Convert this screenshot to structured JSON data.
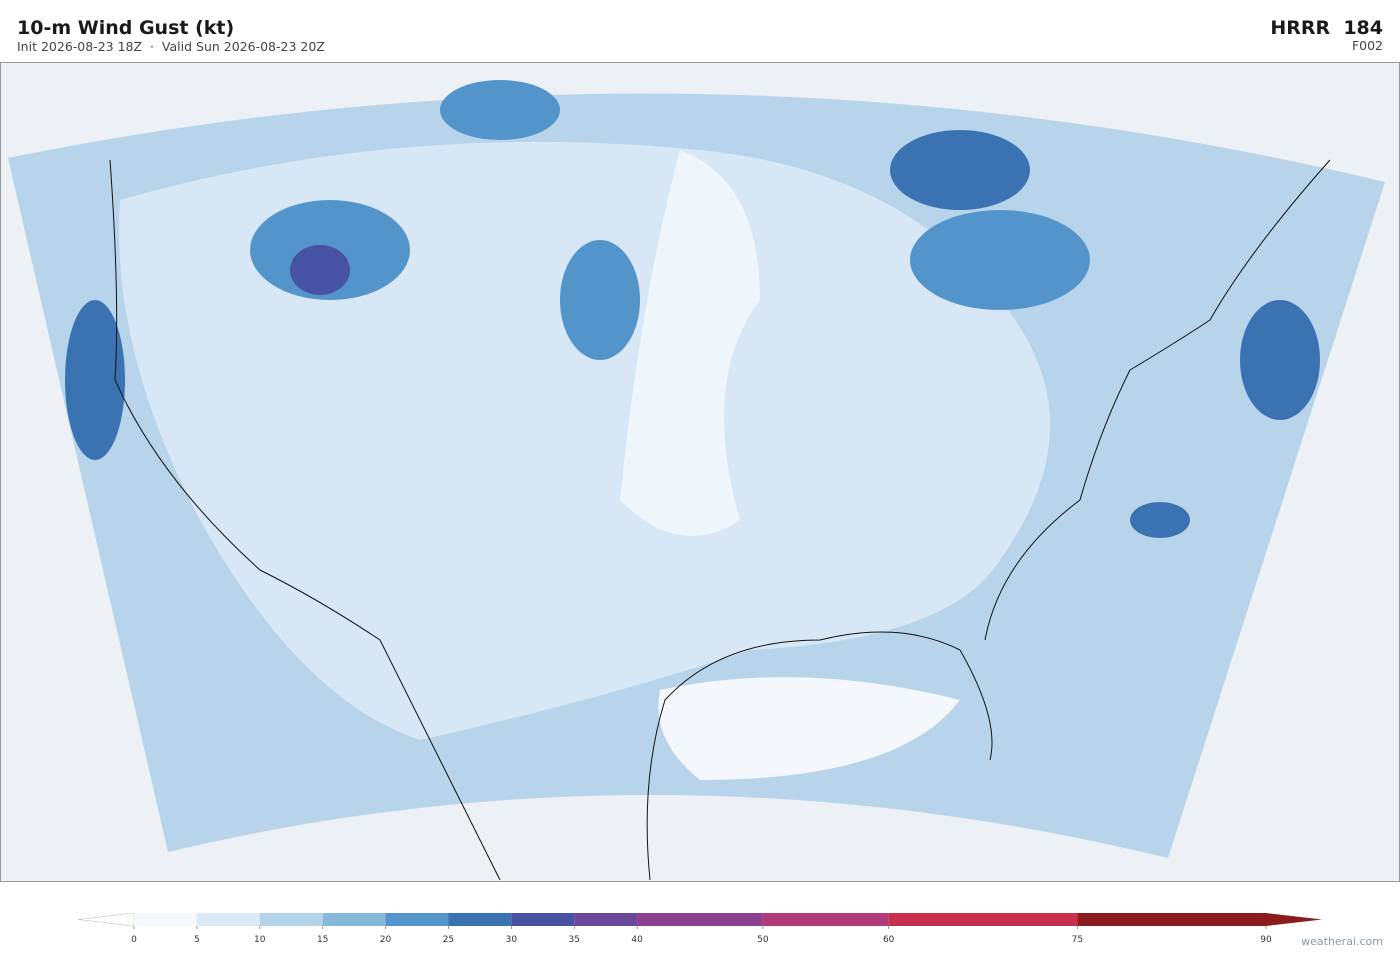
{
  "header": {
    "title": "10-m Wind Gust  (kt)",
    "subtitle": "Init 2026-08-23 18Z  ·  Valid Sun 2026-08-23 20Z",
    "model": "HRRR  184",
    "forecast_hour": "F002"
  },
  "colorbar": {
    "lim": [
      0,
      90
    ],
    "ticks": [
      0,
      5,
      10,
      15,
      20,
      25,
      30,
      35,
      40,
      50,
      60,
      75,
      90
    ],
    "colors": [
      "#f4f8fc",
      "#dce9f6",
      "#b3d3ea",
      "#86b8dc",
      "#5394cb",
      "#3a72b2",
      "#4852a3",
      "#6a4799",
      "#8a3f8f",
      "#b13a78",
      "#c72f4e",
      "#8c1c1c"
    ],
    "under_color": "#ffffff",
    "over_color": "#8c1c1c"
  },
  "footer": {
    "credit": "weatherai.com"
  }
}
